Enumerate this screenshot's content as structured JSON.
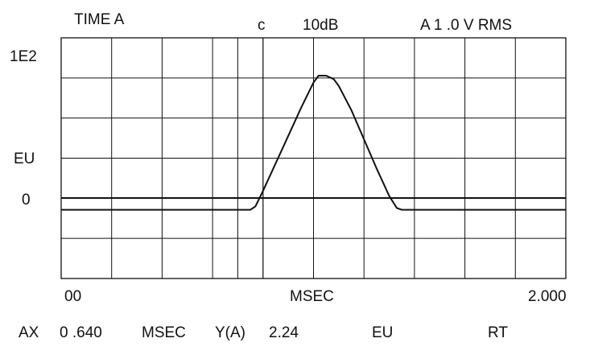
{
  "header": {
    "title": "TIME A",
    "marker": "c",
    "range": "10dB",
    "channel_scale": "A 1 .0 V RMS"
  },
  "y_axis": {
    "top_label": "1E2",
    "unit_label": "EU",
    "zero_label": "0"
  },
  "x_axis": {
    "start_label": "00",
    "unit_label": "MSEC",
    "end_label": "2.000"
  },
  "readout": {
    "ax_label": "AX",
    "ax_value": "0 .640",
    "ax_unit": "MSEC",
    "y_label": "Y(A)",
    "y_value": "2.24",
    "y_unit": "EU",
    "mode": "RT"
  },
  "chart_data": {
    "type": "line",
    "xlabel": "MSEC",
    "ylabel": "EU",
    "xlim": [
      0,
      2.0
    ],
    "ylim": [
      -40,
      100
    ],
    "grid": true,
    "grid_divisions": {
      "x": 10,
      "y": 6
    },
    "cursor_x": [
      0.7,
      0.8
    ],
    "series": [
      {
        "x": [
          0,
          0.75,
          0.77,
          0.8,
          0.85,
          0.9,
          0.95,
          1.0,
          1.02,
          1.05,
          1.08,
          1.1,
          1.15,
          1.2,
          1.25,
          1.3,
          1.33,
          1.35,
          2.0
        ],
        "y": [
          0,
          0,
          2,
          11,
          27,
          43,
          59,
          74,
          78,
          78,
          76,
          72,
          58,
          41,
          24,
          8,
          1,
          0,
          0
        ]
      }
    ]
  }
}
